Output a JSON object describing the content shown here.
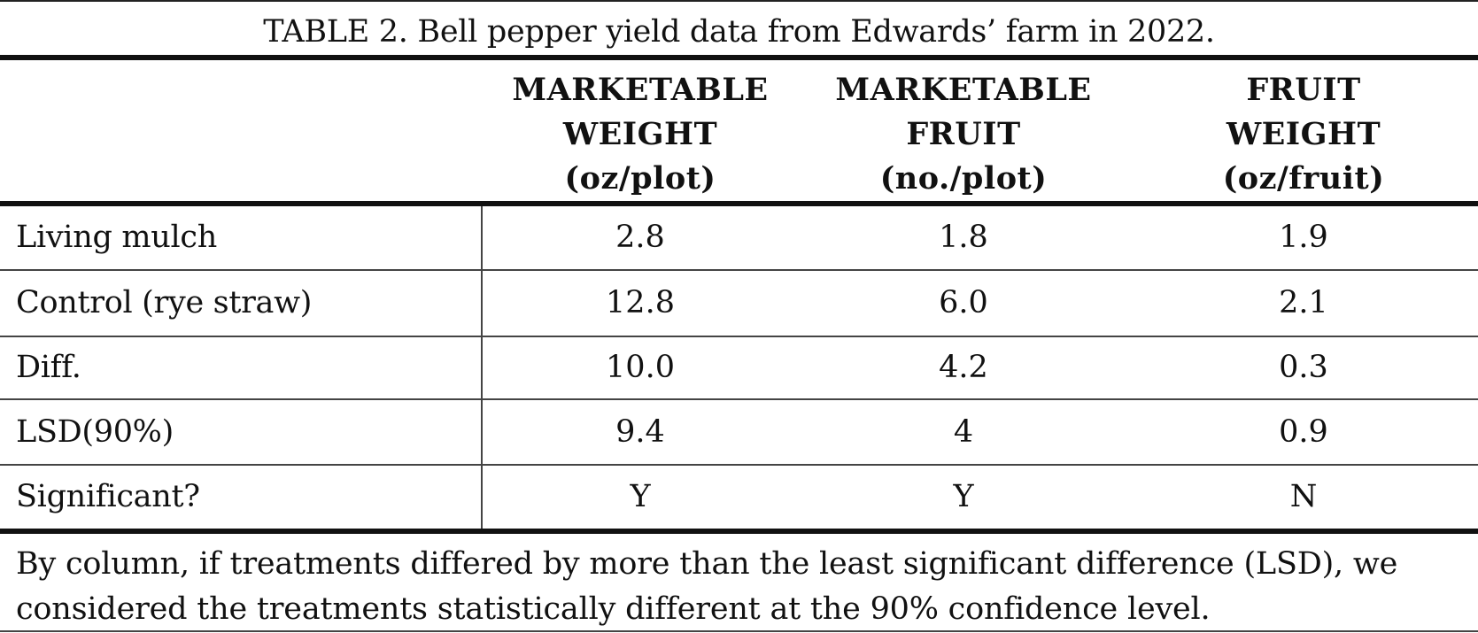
{
  "table": {
    "caption": "TABLE 2. Bell pepper yield data from Edwards’ farm in 2022.",
    "headers": [
      {
        "line1": "MARKETABLE",
        "line2": "WEIGHT",
        "line3": "(oz/plot)"
      },
      {
        "line1": "MARKETABLE",
        "line2": "FRUIT",
        "line3": "(no./plot)"
      },
      {
        "line1": "FRUIT",
        "line2": "WEIGHT",
        "line3": "(oz/fruit)"
      }
    ],
    "rows": [
      {
        "label": "Living mulch",
        "values": [
          "2.8",
          "1.8",
          "1.9"
        ]
      },
      {
        "label": "Control (rye straw)",
        "values": [
          "12.8",
          "6.0",
          "2.1"
        ]
      },
      {
        "label": "Diff.",
        "values": [
          "10.0",
          "4.2",
          "0.3"
        ]
      },
      {
        "label": "LSD(90%)",
        "values": [
          "9.4",
          "4",
          "0.9"
        ]
      },
      {
        "label": "Significant?",
        "values": [
          "Y",
          "Y",
          "N"
        ]
      }
    ],
    "footnote_line1": "By column, if treatments differed by more than the least significant difference (LSD), we",
    "footnote_line2": "considered the treatments statistically different at the 90% confidence level."
  }
}
